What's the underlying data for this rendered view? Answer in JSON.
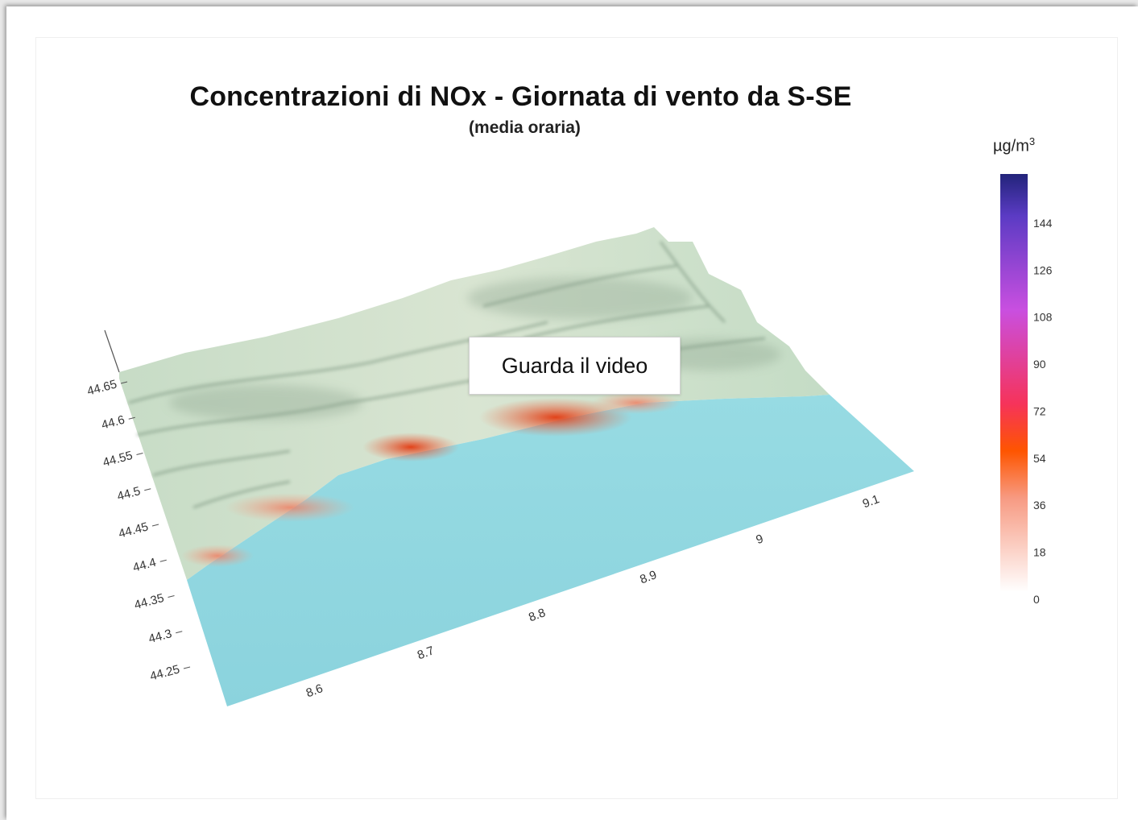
{
  "page": {
    "video_button_label": "Guarda il video"
  },
  "chart_data": {
    "type": "surface3d",
    "title": "Concentrazioni di NOx  - Giornata di vento da S-SE",
    "subtitle": "(media oraria)",
    "x_axis": {
      "ticks": [
        8.6,
        8.7,
        8.8,
        8.9,
        9,
        9.1
      ],
      "tick_labels": [
        "8.6",
        "8.7",
        "8.8",
        "8.9",
        "9",
        "9.1"
      ]
    },
    "y_axis": {
      "ticks": [
        44.25,
        44.3,
        44.35,
        44.4,
        44.45,
        44.5,
        44.55,
        44.6,
        44.65
      ],
      "tick_labels": [
        "44.25",
        "44.3",
        "44.35",
        "44.4",
        "44.45",
        "44.5",
        "44.55",
        "44.6",
        "44.65"
      ]
    },
    "colorbar": {
      "unit_base": "µg/m",
      "unit_exp": "3",
      "min": 0,
      "max": 160,
      "ticks": [
        0,
        18,
        36,
        54,
        72,
        90,
        108,
        126,
        144
      ],
      "tick_labels": [
        "0",
        "18",
        "36",
        "54",
        "72",
        "90",
        "108",
        "126",
        "144"
      ],
      "stops": [
        {
          "value": 0,
          "color": "#ffffff"
        },
        {
          "value": 36,
          "color": "#f79a82"
        },
        {
          "value": 54,
          "color": "#fe5500"
        },
        {
          "value": 72,
          "color": "#f6335a"
        },
        {
          "value": 108,
          "color": "#c94fe0"
        },
        {
          "value": 144,
          "color": "#5b3bc4"
        },
        {
          "value": 160,
          "color": "#22247a"
        }
      ]
    },
    "colors": {
      "sea": "#93d8e1",
      "terrain": "#cde3cc",
      "terrain_dark": "#7f9682",
      "hotspot": "#e8360f"
    }
  }
}
